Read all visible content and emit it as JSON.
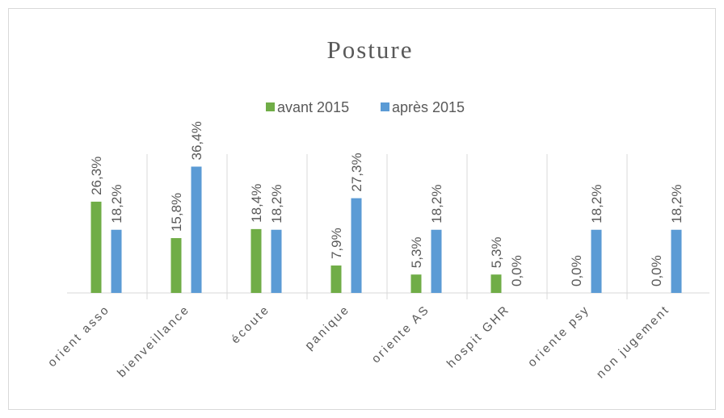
{
  "chart_data": {
    "type": "bar",
    "title": "Posture",
    "categories": [
      "orient asso",
      "bienveillance",
      "écoute",
      "panique",
      "oriente AS",
      "hospit GHR",
      "oriente psy",
      "non jugement"
    ],
    "series": [
      {
        "name": "avant 2015",
        "color": "#70ad47",
        "values": [
          26.3,
          15.8,
          18.4,
          7.9,
          5.3,
          5.3,
          0,
          0
        ],
        "value_labels": [
          "26,3%",
          "15,8%",
          "18,4%",
          "7,9%",
          "5,3%",
          "5,3%",
          "0,0%",
          "0,0%"
        ]
      },
      {
        "name": "après 2015",
        "color": "#5b9bd5",
        "values": [
          18.2,
          36.4,
          18.2,
          27.3,
          18.2,
          0,
          18.2,
          18.2
        ],
        "value_labels": [
          "18,2%",
          "36,4%",
          "18,2%",
          "27,3%",
          "18,2%",
          "0,0%",
          "18,2%",
          "18,2%"
        ]
      }
    ],
    "ylim": [
      0,
      40
    ],
    "legend": "top"
  }
}
